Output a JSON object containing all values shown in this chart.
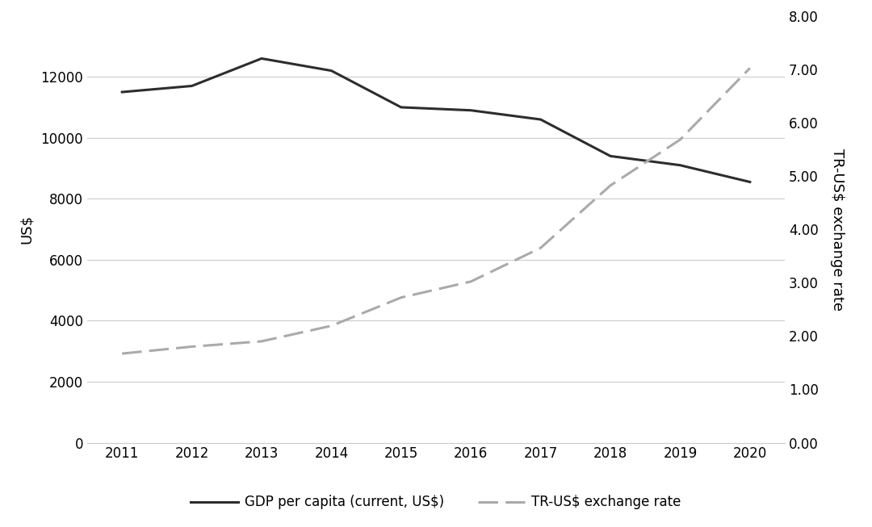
{
  "years": [
    2011,
    2012,
    2013,
    2014,
    2015,
    2016,
    2017,
    2018,
    2019,
    2020
  ],
  "gdp_per_capita": [
    11500,
    11700,
    12600,
    12200,
    11000,
    10900,
    10600,
    9400,
    9100,
    8550
  ],
  "exchange_rate": [
    1.67,
    1.8,
    1.9,
    2.19,
    2.72,
    3.02,
    3.65,
    4.82,
    5.68,
    7.02
  ],
  "gdp_color": "#2d2d2d",
  "exr_color": "#aaaaaa",
  "gdp_label": "GDP per capita (current, US$)",
  "exr_label": "TR-US$ exchange rate",
  "ylabel_left": "US$",
  "ylabel_right": "TR-US$ exchange rate",
  "ylim_left": [
    0,
    14000
  ],
  "ylim_right": [
    0.0,
    8.0
  ],
  "yticks_left": [
    0,
    2000,
    4000,
    6000,
    8000,
    10000,
    12000
  ],
  "yticks_right": [
    0.0,
    1.0,
    2.0,
    3.0,
    4.0,
    5.0,
    6.0,
    7.0,
    8.0
  ],
  "background_color": "#ffffff",
  "grid_color": "#cccccc",
  "label_fontsize": 13,
  "tick_fontsize": 12,
  "legend_fontsize": 12
}
